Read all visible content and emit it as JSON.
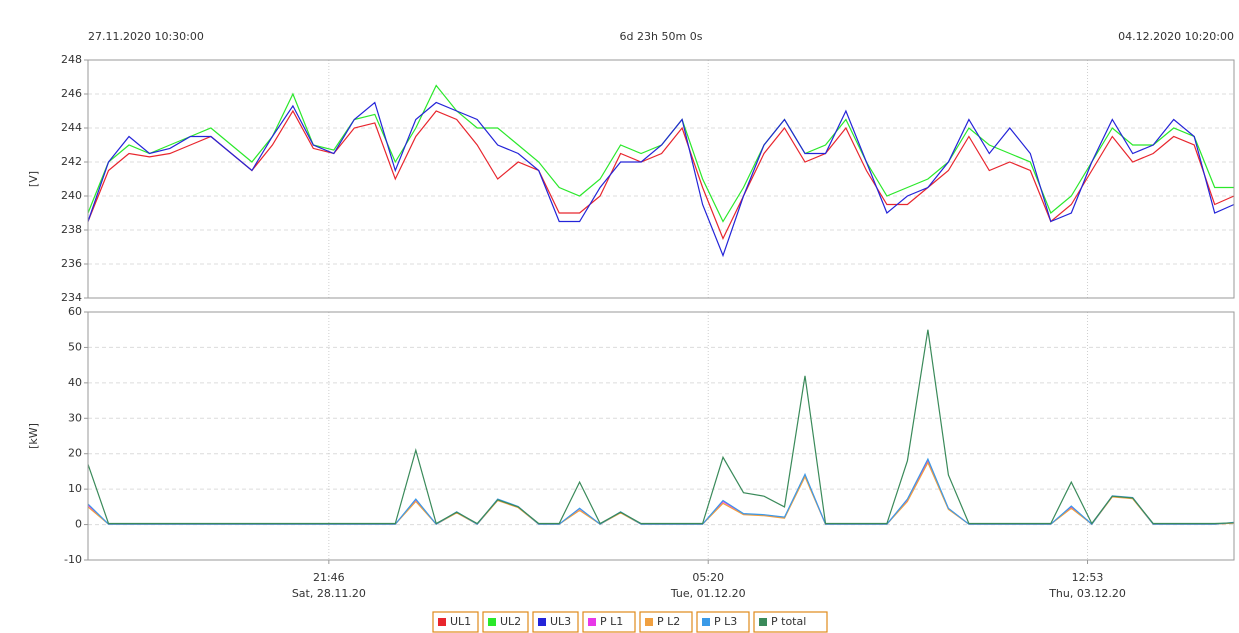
{
  "chart_data": [
    {
      "type": "line",
      "x_start_label": "27.11.2020 10:30:00",
      "duration": "6d 23h 50m 0s",
      "x_end_label": "04.12.2020 10:20:00",
      "ylabel": "[V]",
      "xlim": [
        0,
        167.83
      ],
      "ylim": [
        234,
        248
      ],
      "yticks": [
        234,
        236,
        238,
        240,
        242,
        244,
        246,
        248
      ],
      "grid": true,
      "x": [
        0,
        3,
        6,
        9,
        12,
        15,
        18,
        21,
        24,
        27,
        30,
        33,
        36,
        39,
        42,
        45,
        48,
        51,
        54,
        57,
        60,
        63,
        66,
        69,
        72,
        75,
        78,
        81,
        84,
        87,
        90,
        93,
        96,
        99,
        102,
        105,
        108,
        111,
        114,
        117,
        120,
        123,
        126,
        129,
        132,
        135,
        138,
        141,
        144,
        147,
        150,
        153,
        156,
        159,
        162,
        165,
        167.83
      ],
      "series": [
        {
          "name": "UL1",
          "color": "#e8262e",
          "values": [
            238.5,
            241.5,
            242.5,
            242.3,
            242.5,
            243,
            243.5,
            242.5,
            241.5,
            243,
            245,
            242.8,
            242.5,
            244,
            244.3,
            241,
            243.5,
            245,
            244.5,
            243,
            241,
            242,
            241.5,
            239,
            239,
            240,
            242.5,
            242,
            242.5,
            244,
            240.5,
            237.5,
            240,
            242.5,
            244,
            242,
            242.5,
            244,
            241.5,
            239.5,
            239.5,
            240.5,
            241.5,
            243.5,
            241.5,
            242,
            241.5,
            238.5,
            239.5,
            241.5,
            243.5,
            242,
            242.5,
            243.5,
            243,
            239.5,
            240
          ]
        },
        {
          "name": "UL2",
          "color": "#2be82b",
          "values": [
            239,
            242,
            243,
            242.5,
            243,
            243.5,
            244,
            243,
            242,
            243.5,
            246,
            243,
            242.7,
            244.5,
            244.8,
            242,
            244,
            246.5,
            245,
            244,
            244,
            243,
            242,
            240.5,
            240,
            241,
            243,
            242.5,
            243,
            244.5,
            241,
            238.5,
            240.5,
            243,
            244.5,
            242.5,
            243,
            244.5,
            242,
            240,
            240.5,
            241,
            242,
            244,
            243,
            242.5,
            242,
            239,
            240,
            242,
            244,
            243,
            243,
            244,
            243.5,
            240.5,
            240.5
          ]
        },
        {
          "name": "UL3",
          "color": "#2424d8",
          "values": [
            238.5,
            242,
            243.5,
            242.5,
            242.8,
            243.5,
            243.5,
            242.5,
            241.5,
            243.5,
            245.3,
            243,
            242.5,
            244.5,
            245.5,
            241.5,
            244.5,
            245.5,
            245,
            244.5,
            243,
            242.5,
            241.5,
            238.5,
            238.5,
            240.5,
            242,
            242,
            243,
            244.5,
            239.5,
            236.5,
            240,
            243,
            244.5,
            242.5,
            242.5,
            245,
            242,
            239,
            240,
            240.5,
            242,
            244.5,
            242.5,
            244,
            242.5,
            238.5,
            239,
            242,
            244.5,
            242.5,
            243,
            244.5,
            243.5,
            239,
            239.5
          ]
        }
      ]
    },
    {
      "type": "line",
      "ylabel": "[kW]",
      "xlim": [
        0,
        167.83
      ],
      "ylim": [
        -10,
        60
      ],
      "yticks": [
        -10,
        0,
        10,
        20,
        30,
        40,
        50,
        60
      ],
      "grid": true,
      "xticks": [
        {
          "value": 35.27,
          "label": "21:46",
          "sublabel": "Sat, 28.11.20"
        },
        {
          "value": 90.83,
          "label": "05:20",
          "sublabel": "Tue, 01.12.20"
        },
        {
          "value": 146.38,
          "label": "12:53",
          "sublabel": "Thu, 03.12.20"
        }
      ],
      "series": [
        {
          "name": "P L1",
          "color": "#e838e8",
          "values": [
            5.5,
            0.1,
            0.1,
            0.1,
            0.1,
            0.1,
            0.1,
            0.1,
            0.1,
            0.1,
            0.1,
            0.1,
            0.1,
            0.1,
            0.1,
            0.1,
            7,
            0.1,
            3.5,
            0.1,
            7,
            5,
            0.1,
            0.1,
            4.5,
            0.1,
            3.5,
            0.1,
            0.1,
            0.1,
            0.1,
            6.5,
            3,
            2.7,
            2,
            14,
            0.1,
            0.1,
            0.1,
            0.1,
            7,
            18,
            4.5,
            0.1,
            0.1,
            0.1,
            0.1,
            0.1,
            5,
            0.1,
            8,
            7.5,
            0.1,
            0.1,
            0.1,
            0.1,
            0.5
          ]
        },
        {
          "name": "P L2",
          "color": "#f0a040",
          "values": [
            5,
            0.1,
            0.1,
            0.1,
            0.1,
            0.1,
            0.1,
            0.1,
            0.1,
            0.1,
            0.1,
            0.1,
            0.1,
            0.1,
            0.1,
            0.1,
            6.5,
            0.1,
            3.3,
            0.1,
            6.8,
            4.8,
            0.1,
            0.1,
            4,
            0.1,
            3.3,
            0.1,
            0.1,
            0.1,
            0.1,
            6,
            2.8,
            2.5,
            1.8,
            13.5,
            0.1,
            0.1,
            0.1,
            0.1,
            6.5,
            17.5,
            4.3,
            0.1,
            0.1,
            0.1,
            0.1,
            0.1,
            4.6,
            0.1,
            7.8,
            7.3,
            0.1,
            0.1,
            0.1,
            0.1,
            0.4
          ]
        },
        {
          "name": "P L3",
          "color": "#3a9ae8",
          "values": [
            5.8,
            0.1,
            0.1,
            0.1,
            0.1,
            0.1,
            0.1,
            0.1,
            0.1,
            0.1,
            0.1,
            0.1,
            0.1,
            0.1,
            0.1,
            0.1,
            7.2,
            0.1,
            3.6,
            0.1,
            7.2,
            5.1,
            0.1,
            0.1,
            4.6,
            0.1,
            3.6,
            0.1,
            0.1,
            0.1,
            0.1,
            6.8,
            3.1,
            2.8,
            2.1,
            14.2,
            0.1,
            0.1,
            0.1,
            0.1,
            7.2,
            18.5,
            4.6,
            0.1,
            0.1,
            0.1,
            0.1,
            0.1,
            5.2,
            0.1,
            8.1,
            7.6,
            0.1,
            0.1,
            0.1,
            0.1,
            0.6
          ]
        },
        {
          "name": "P total",
          "color": "#3a8a5a",
          "values": [
            17,
            0.3,
            0.3,
            0.3,
            0.3,
            0.3,
            0.3,
            0.3,
            0.3,
            0.3,
            0.3,
            0.3,
            0.3,
            0.3,
            0.3,
            0.3,
            21,
            0.3,
            3.5,
            0.3,
            7,
            5,
            0.3,
            0.3,
            12,
            0.3,
            3.5,
            0.3,
            0.3,
            0.3,
            0.3,
            19,
            9,
            8,
            5,
            42,
            0.3,
            0.3,
            0.3,
            0.3,
            18,
            55,
            14,
            0.3,
            0.3,
            0.3,
            0.3,
            0.3,
            12,
            0.3,
            8,
            7.5,
            0.3,
            0.3,
            0.3,
            0.3,
            0.5
          ]
        }
      ]
    }
  ]
}
